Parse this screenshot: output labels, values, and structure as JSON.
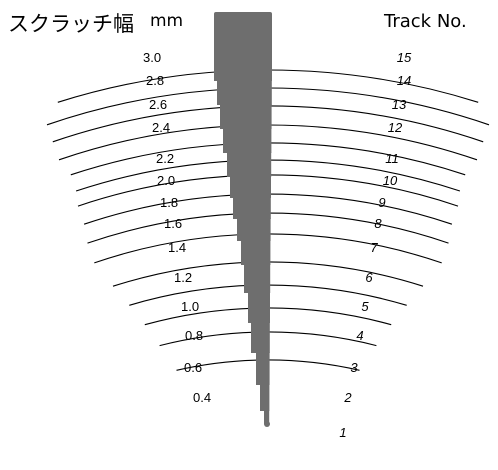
{
  "header": {
    "title_jp": "スクラッチ幅",
    "unit": "mm",
    "track_header": "Track No."
  },
  "colors": {
    "line": "#000000",
    "wedge": "#6e6e6e",
    "text": "#000000"
  },
  "rows": [
    {
      "track": "15",
      "width": "3.0"
    },
    {
      "track": "14",
      "width": "2.8"
    },
    {
      "track": "13",
      "width": "2.6"
    },
    {
      "track": "12",
      "width": "2.4"
    },
    {
      "track": "11",
      "width": "2.2"
    },
    {
      "track": "10",
      "width": "2.0"
    },
    {
      "track": "9",
      "width": "1.8"
    },
    {
      "track": "8",
      "width": "1.6"
    },
    {
      "track": "7",
      "width": "1.4"
    },
    {
      "track": "6",
      "width": "1.2"
    },
    {
      "track": "5",
      "width": "1.0"
    },
    {
      "track": "4",
      "width": "0.8"
    },
    {
      "track": "3",
      "width": "0.6"
    },
    {
      "track": "2",
      "width": "0.4"
    },
    {
      "track": "1",
      "width": ""
    }
  ]
}
